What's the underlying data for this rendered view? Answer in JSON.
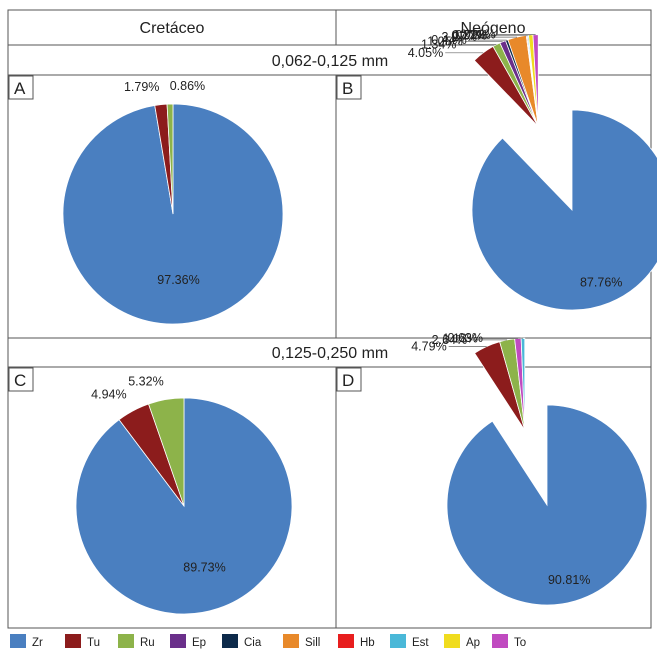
{
  "headers": {
    "col1": "Cretáceo",
    "col2": "Neógeno",
    "row1": "0,062-0,125 mm",
    "row2": "0,125-0,250 mm"
  },
  "colors": {
    "Zr": "#4a7fc0",
    "Tu": "#8c1c1c",
    "Ru": "#8db34a",
    "Ep": "#6a2f8a",
    "Cia": "#0d2a4a",
    "Sill": "#e8892a",
    "Hb": "#e81e1e",
    "Est": "#4ab8d8",
    "Ap": "#f0dc1e",
    "To": "#c04ac0"
  },
  "chart_data": [
    {
      "type": "pie",
      "panel": "A",
      "slices": [
        {
          "mineral": "Zr",
          "value": 97.36,
          "label": "97.36%"
        },
        {
          "mineral": "Tu",
          "value": 1.79,
          "label": "1.79%"
        },
        {
          "mineral": "Ru",
          "value": 0.86,
          "label": "0.86%"
        }
      ]
    },
    {
      "type": "pie",
      "panel": "B",
      "slices": [
        {
          "mineral": "Zr",
          "value": 87.76,
          "label": "87.76%"
        },
        {
          "mineral": "Tu",
          "value": 4.05,
          "label": "4.05%"
        },
        {
          "mineral": "Ru",
          "value": 1.34,
          "label": "1.34%"
        },
        {
          "mineral": "Ep",
          "value": 1.05,
          "label": "1.05%"
        },
        {
          "mineral": "Cia",
          "value": 0.44,
          "label": "0.44%"
        },
        {
          "mineral": "Sill",
          "value": 3.27,
          "label": "3.27%"
        },
        {
          "mineral": "Hb",
          "value": 0.17,
          "label": "0.17%"
        },
        {
          "mineral": "Est",
          "value": 0.21,
          "label": "0.21%"
        },
        {
          "mineral": "Ap",
          "value": 0.78,
          "label": "0.78%"
        },
        {
          "mineral": "To",
          "value": 0.92,
          "label": "0.92%"
        }
      ]
    },
    {
      "type": "pie",
      "panel": "C",
      "slices": [
        {
          "mineral": "Zr",
          "value": 89.73,
          "label": "89.73%"
        },
        {
          "mineral": "Tu",
          "value": 4.94,
          "label": "4.94%"
        },
        {
          "mineral": "Ru",
          "value": 5.32,
          "label": "5.32%"
        }
      ]
    },
    {
      "type": "pie",
      "panel": "D",
      "slices": [
        {
          "mineral": "Zr",
          "value": 90.81,
          "label": "90.81%"
        },
        {
          "mineral": "Tu",
          "value": 4.79,
          "label": "4.79%"
        },
        {
          "mineral": "Ru",
          "value": 2.64,
          "label": "2.64%"
        },
        {
          "mineral": "To",
          "value": 1.13,
          "label": "1.13%"
        },
        {
          "mineral": "Est",
          "value": 0.63,
          "label": "0.63%"
        }
      ]
    }
  ],
  "legend": [
    {
      "key": "Zr",
      "label": "Zr"
    },
    {
      "key": "Tu",
      "label": "Tu"
    },
    {
      "key": "Ru",
      "label": "Ru"
    },
    {
      "key": "Ep",
      "label": "Ep"
    },
    {
      "key": "Cia",
      "label": "Cia"
    },
    {
      "key": "Sill",
      "label": "Sill"
    },
    {
      "key": "Hb",
      "label": "Hb"
    },
    {
      "key": "Est",
      "label": "Est"
    },
    {
      "key": "Ap",
      "label": "Ap"
    },
    {
      "key": "To",
      "label": "To"
    }
  ]
}
